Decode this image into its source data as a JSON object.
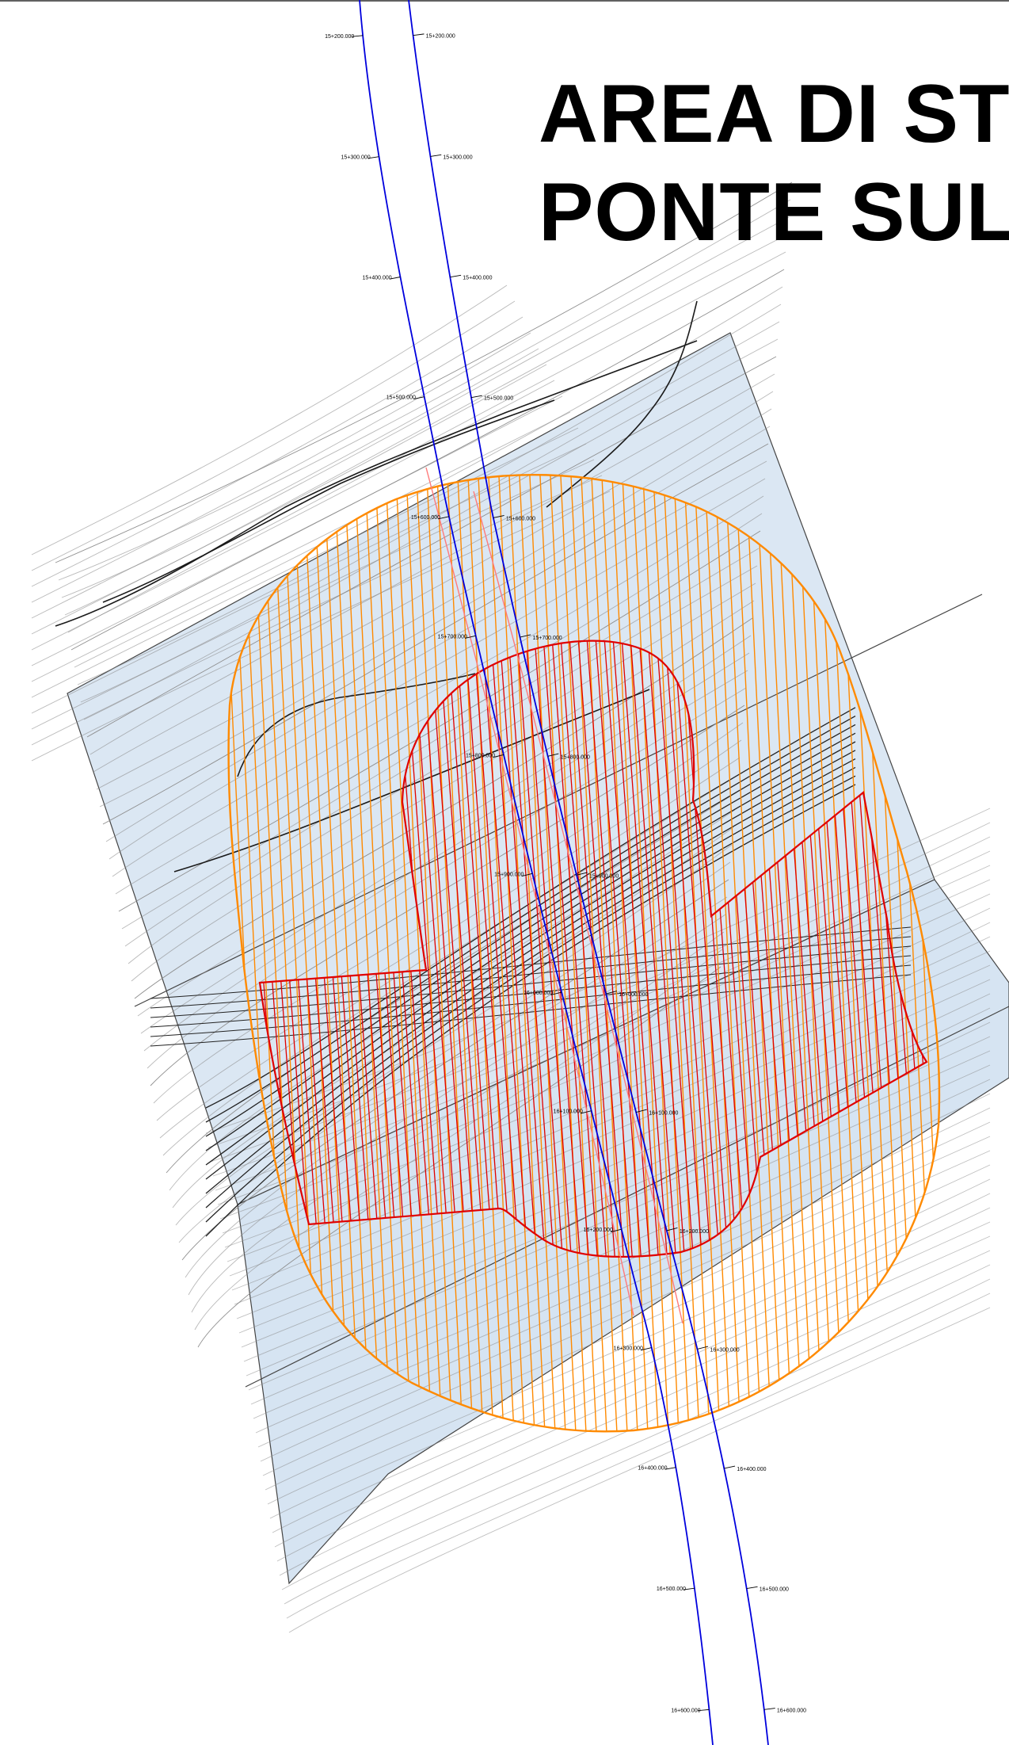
{
  "title": {
    "line1": "AREA DI ST",
    "line2": "PONTE SUL"
  },
  "colors": {
    "background": "#ffffff",
    "survey_fill": "#dbe7f3",
    "contour": "#8a8a8a",
    "alignment": "#0000dd",
    "inner_zone": "#e00000",
    "outer_zone": "#ff8a00"
  },
  "chainage": {
    "left": [
      "15+200.000",
      "15+300.000",
      "15+400.000",
      "15+500.000",
      "15+600.000",
      "15+700.000",
      "15+800.000",
      "15+900.000",
      "16+000.000",
      "16+100.000",
      "16+200.000",
      "16+300.000",
      "16+400.000",
      "16+500.000",
      "16+600.000"
    ],
    "right": [
      "15+200.000",
      "15+300.000",
      "15+400.000",
      "15+500.000",
      "15+600.000",
      "15+700.000",
      "15+800.000",
      "15+900.000",
      "16+000.000",
      "16+100.000",
      "16+200.000",
      "16+300.000",
      "16+400.000",
      "16+500.000",
      "16+600.000"
    ]
  }
}
